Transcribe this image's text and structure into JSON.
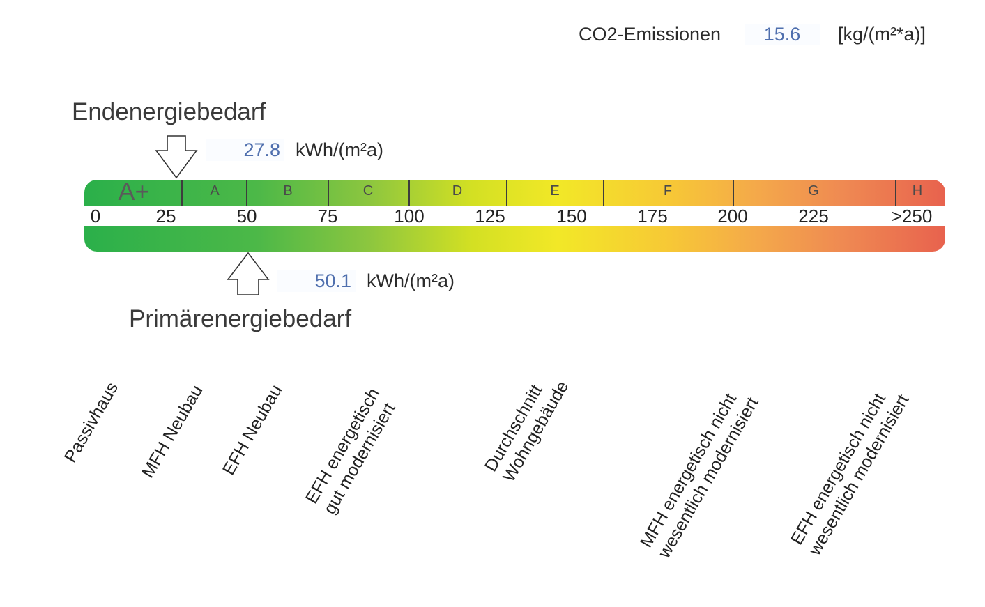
{
  "co2": {
    "label": "CO2-Emissionen",
    "value": "15.6",
    "unit": "[kg/(m²*a)]"
  },
  "end_energy": {
    "title": "Endenergiebedarf",
    "value": "27.8",
    "unit": "kWh/(m²a)",
    "marker_position": 27.8
  },
  "primary_energy": {
    "title": "Primärenergiebedarf",
    "value": "50.1",
    "unit": "kWh/(m²a)",
    "marker_position": 50.1
  },
  "scale": {
    "classes": [
      "A+",
      "A",
      "B",
      "C",
      "D",
      "E",
      "F",
      "G",
      "H"
    ],
    "ticks": [
      "0",
      "25",
      "50",
      "75",
      "100",
      "125",
      "150",
      "175",
      "200",
      "225",
      ">250"
    ]
  },
  "reference_labels": [
    {
      "lines": [
        "Passivhaus"
      ]
    },
    {
      "lines": [
        "MFH Neubau"
      ]
    },
    {
      "lines": [
        "EFH Neubau"
      ]
    },
    {
      "lines": [
        "EFH energetisch",
        "gut modernisiert"
      ]
    },
    {
      "lines": [
        "Durchschnitt",
        "Wohngebäude"
      ]
    },
    {
      "lines": [
        "MFH energetisch nicht",
        "wesentlich modernisiert"
      ]
    },
    {
      "lines": [
        "EFH energetisch nicht",
        "wesentlich modernisiert"
      ]
    }
  ],
  "colors": {
    "value_text": "#4f6fae",
    "bar_start": "#2bb04a",
    "bar_mid": "#f2e827",
    "bar_end": "#e8624e"
  }
}
